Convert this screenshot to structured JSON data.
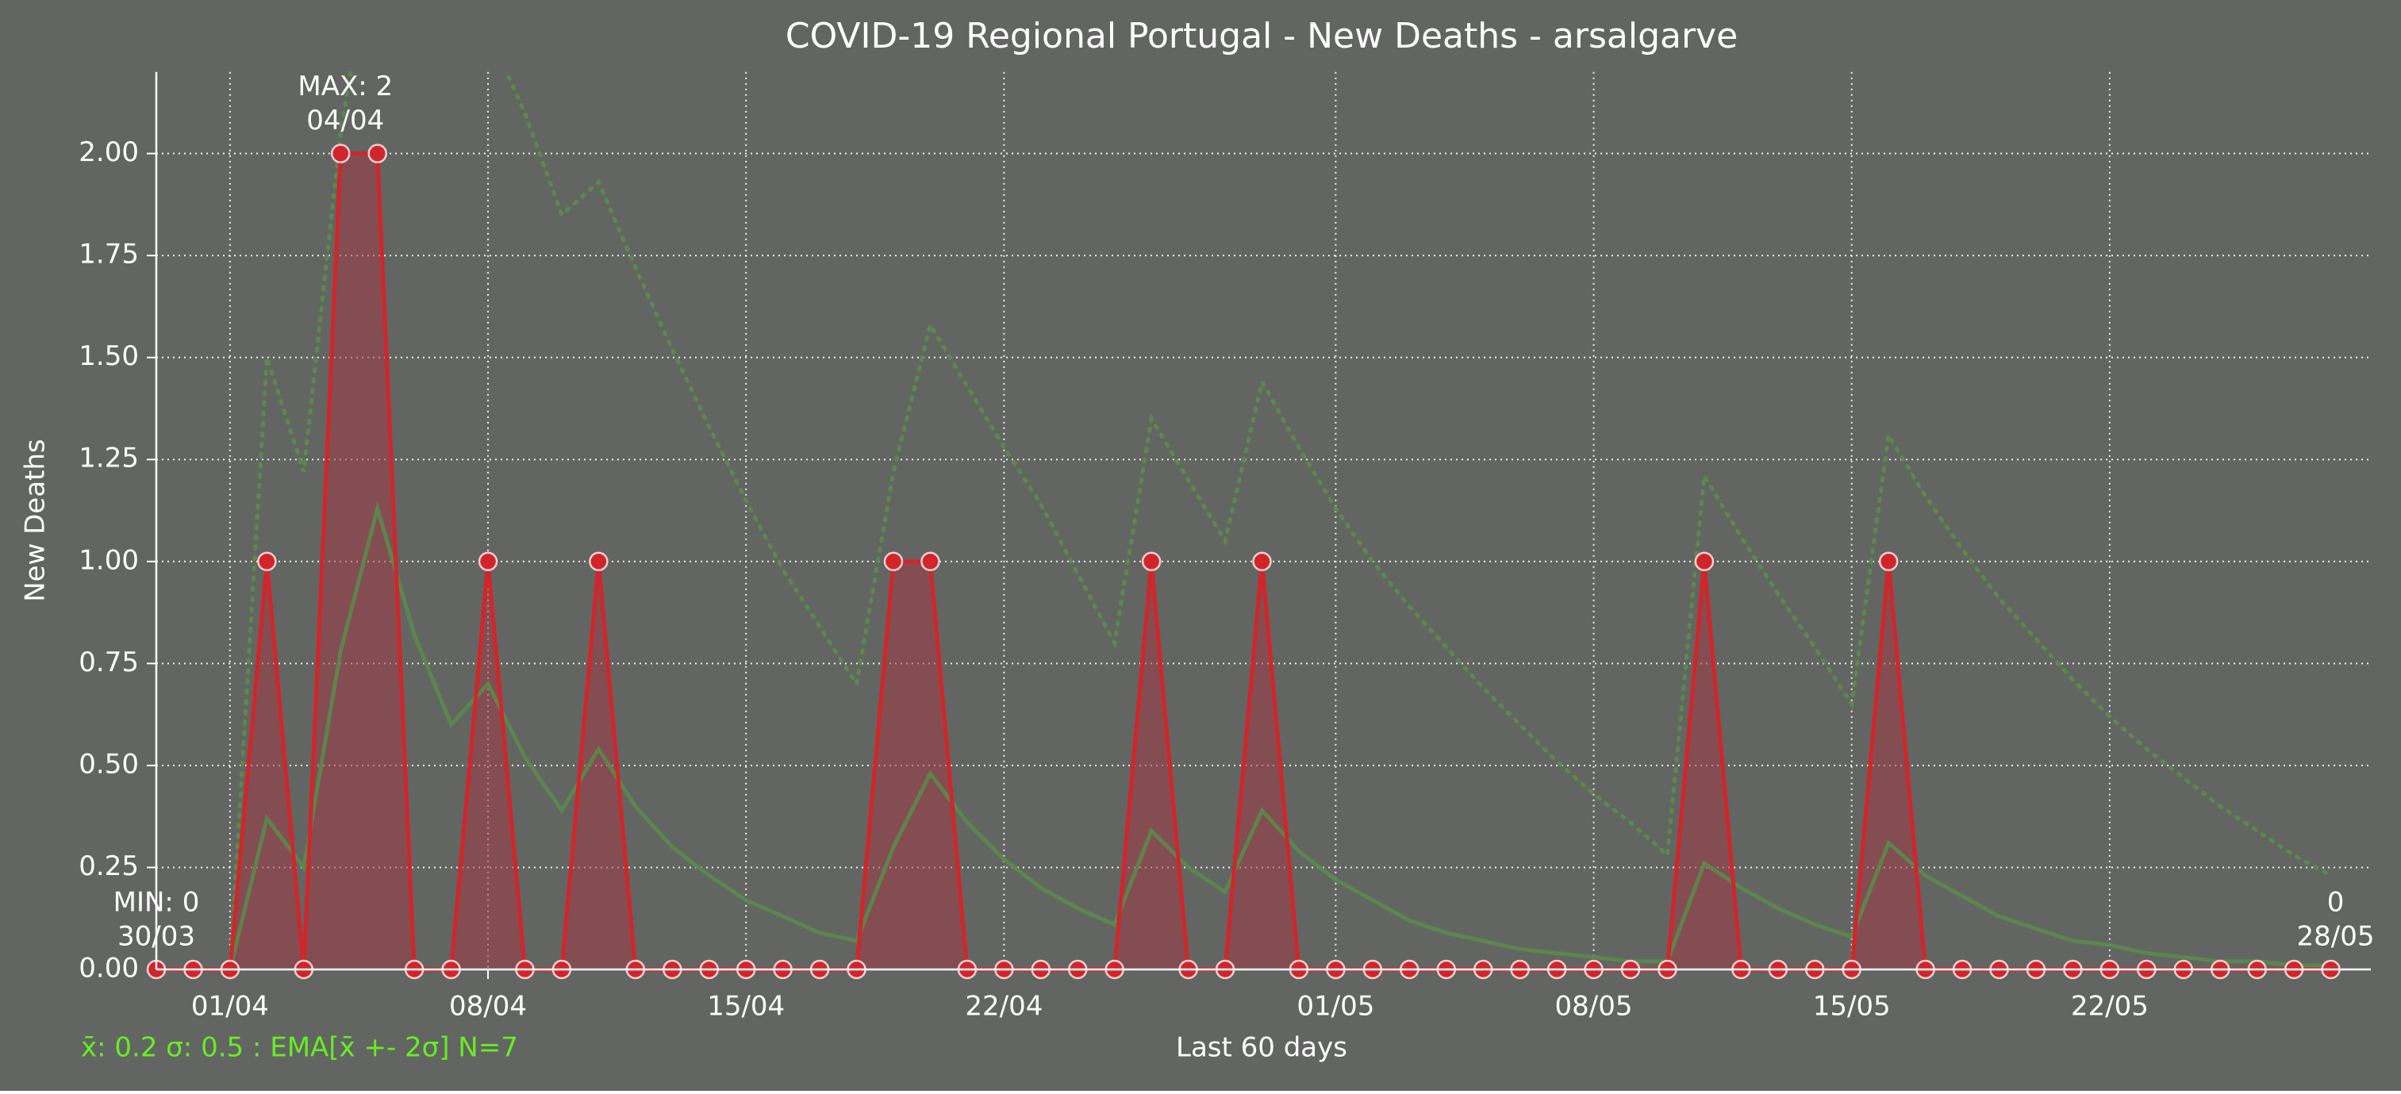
{
  "chart_data": {
    "type": "line",
    "title": "COVID-19 Regional Portugal - New Deaths - arsalgarve",
    "xlabel": "Last 60 days",
    "ylabel": "New Deaths",
    "footer": "x̄: 0.2 σ: 0.5 : EMA[x̄ +- 2σ] N=7",
    "footer_color": "#66ee22",
    "background": "#636563",
    "categories": [
      null,
      null,
      "01/04",
      null,
      null,
      null,
      null,
      null,
      null,
      "08/04",
      null,
      null,
      null,
      null,
      null,
      null,
      "15/04",
      null,
      null,
      null,
      null,
      null,
      null,
      "22/04",
      null,
      null,
      null,
      null,
      null,
      null,
      null,
      null,
      "01/05",
      null,
      null,
      null,
      null,
      null,
      null,
      "08/05",
      null,
      null,
      null,
      null,
      null,
      null,
      "15/05",
      null,
      null,
      null,
      null,
      null,
      null,
      "22/05",
      null,
      null,
      null,
      null,
      null,
      null
    ],
    "values": [
      0,
      0,
      0,
      1,
      0,
      2,
      2,
      0,
      0,
      1,
      0,
      0,
      1,
      0,
      0,
      0,
      0,
      0,
      0,
      0,
      1,
      1,
      0,
      0,
      0,
      0,
      0,
      1,
      0,
      0,
      1,
      0,
      0,
      0,
      0,
      0,
      0,
      0,
      0,
      0,
      0,
      0,
      1,
      0,
      0,
      0,
      0,
      1,
      0,
      0,
      0,
      0,
      0,
      0,
      0,
      0,
      0,
      0,
      0,
      0
    ],
    "color": "#d0262b",
    "fill": "#a03a44",
    "ema": [
      0,
      0,
      0,
      0.37,
      0.25,
      0.78,
      1.13,
      0.82,
      0.6,
      0.7,
      0.52,
      0.39,
      0.54,
      0.4,
      0.3,
      0.23,
      0.17,
      0.13,
      0.09,
      0.07,
      0.3,
      0.48,
      0.36,
      0.27,
      0.2,
      0.15,
      0.11,
      0.34,
      0.25,
      0.19,
      0.39,
      0.29,
      0.22,
      0.17,
      0.12,
      0.09,
      0.07,
      0.05,
      0.04,
      0.03,
      0.02,
      0.02,
      0.26,
      0.2,
      0.15,
      0.11,
      0.08,
      0.31,
      0.23,
      0.18,
      0.13,
      0.1,
      0.07,
      0.06,
      0.04,
      0.03,
      0.02,
      0.02,
      0.01,
      0.01
    ],
    "ema_upper": [
      0,
      0,
      0,
      1.5,
      1.22,
      2.05,
      2.6,
      2.55,
      2.35,
      2.3,
      2.1,
      1.85,
      1.93,
      1.72,
      1.52,
      1.33,
      1.15,
      0.98,
      0.84,
      0.7,
      1.22,
      1.58,
      1.43,
      1.28,
      1.14,
      0.97,
      0.8,
      1.35,
      1.2,
      1.05,
      1.44,
      1.28,
      1.13,
      1.0,
      0.89,
      0.79,
      0.69,
      0.6,
      0.51,
      0.43,
      0.36,
      0.28,
      1.21,
      1.06,
      0.92,
      0.79,
      0.65,
      1.31,
      1.16,
      1.03,
      0.91,
      0.81,
      0.71,
      0.62,
      0.54,
      0.47,
      0.4,
      0.34,
      0.28,
      0.23
    ],
    "ema_color": "#5a8a4a",
    "ylim": [
      0,
      2.2
    ],
    "yticks": [
      {
        "value": 0,
        "label": "0.00"
      },
      {
        "value": 0.25,
        "label": "0.25"
      },
      {
        "value": 0.5,
        "label": "0.50"
      },
      {
        "value": 0.75,
        "label": "0.75"
      },
      {
        "value": 1,
        "label": "1.00"
      },
      {
        "value": 1.25,
        "label": "1.25"
      },
      {
        "value": 1.5,
        "label": "1.50"
      },
      {
        "value": 1.75,
        "label": "1.75"
      },
      {
        "value": 2,
        "label": "2.00"
      }
    ],
    "grid": true,
    "annotations": [
      {
        "x": 5,
        "lines": [
          "MAX: 2",
          "04/04"
        ]
      },
      {
        "x": 0,
        "lines": [
          "MIN: 0",
          "30/03"
        ]
      },
      {
        "x": 59,
        "lines": [
          "0",
          "28/05"
        ]
      }
    ]
  }
}
